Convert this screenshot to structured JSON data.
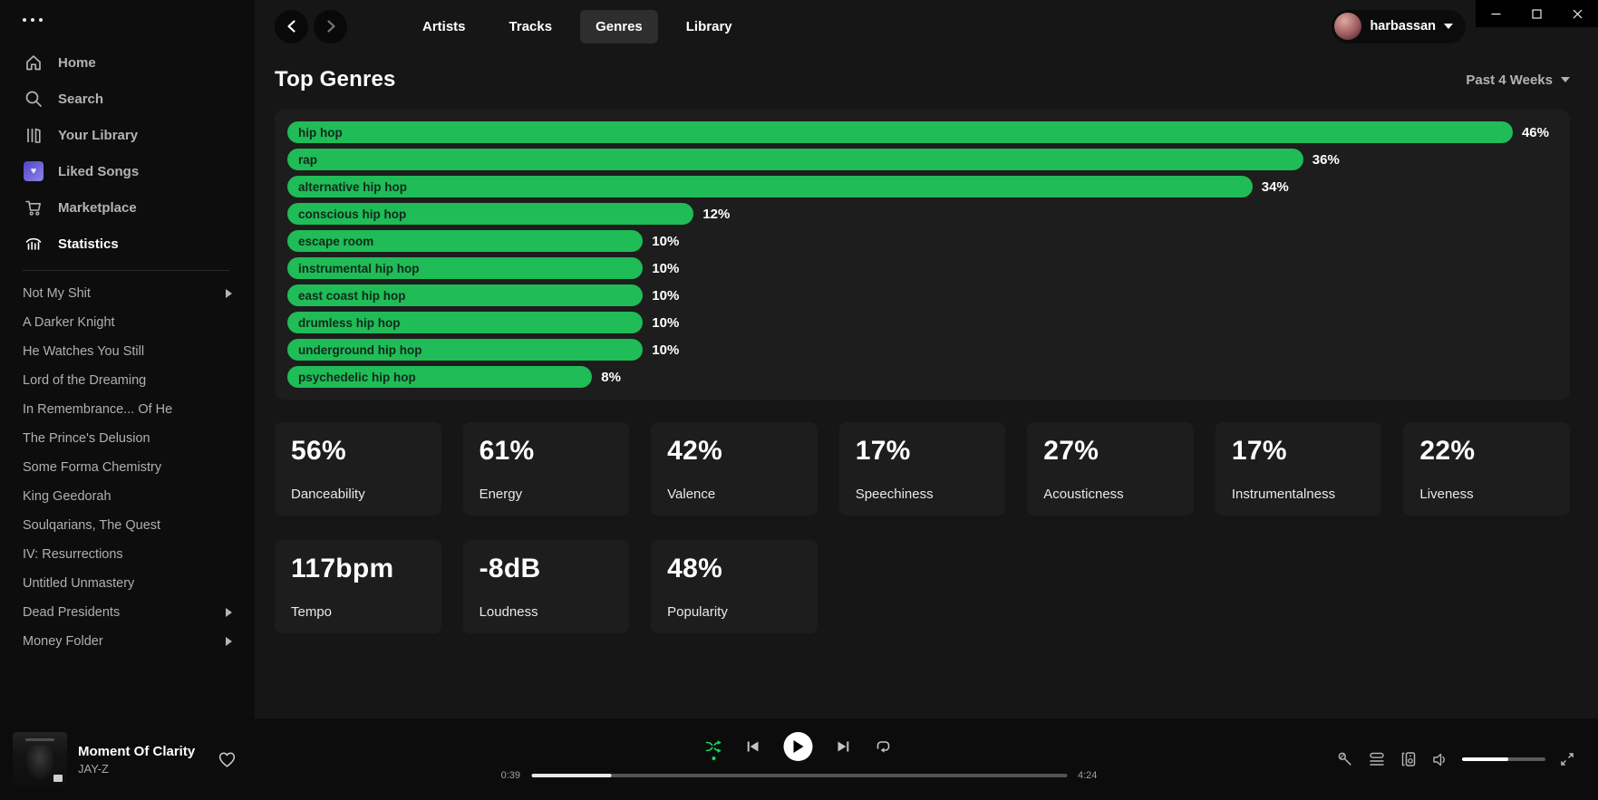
{
  "window": {
    "controls": [
      "minimize",
      "maximize",
      "close"
    ]
  },
  "sidebar": {
    "menu_icon": "ellipsis",
    "nav": [
      {
        "label": "Home",
        "icon": "home",
        "active": false
      },
      {
        "label": "Search",
        "icon": "search",
        "active": false
      },
      {
        "label": "Your Library",
        "icon": "library",
        "active": false
      },
      {
        "label": "Liked Songs",
        "icon": "liked-songs-heart",
        "active": false
      },
      {
        "label": "Marketplace",
        "icon": "cart",
        "active": false
      },
      {
        "label": "Statistics",
        "icon": "bar-chart",
        "active": true
      }
    ],
    "playlists": [
      {
        "label": "Not My Shit",
        "expandable": true
      },
      {
        "label": "A Darker Knight",
        "expandable": false
      },
      {
        "label": "He Watches You Still",
        "expandable": false
      },
      {
        "label": "Lord of the Dreaming",
        "expandable": false
      },
      {
        "label": "In Remembrance... Of He",
        "expandable": false
      },
      {
        "label": "The Prince's Delusion",
        "expandable": false
      },
      {
        "label": "Some Forma Chemistry",
        "expandable": false
      },
      {
        "label": "King Geedorah",
        "expandable": false
      },
      {
        "label": "Soulqarians, The Quest",
        "expandable": false
      },
      {
        "label": "IV: Resurrections",
        "expandable": false
      },
      {
        "label": "Untitled Unmastery",
        "expandable": false
      },
      {
        "label": "Dead Presidents",
        "expandable": true
      },
      {
        "label": "Money Folder",
        "expandable": true
      }
    ]
  },
  "topnav": {
    "tabs": [
      {
        "label": "Artists",
        "active": false
      },
      {
        "label": "Tracks",
        "active": false
      },
      {
        "label": "Genres",
        "active": true
      },
      {
        "label": "Library",
        "active": false
      }
    ],
    "user": {
      "name": "harbassan"
    }
  },
  "page": {
    "title": "Top Genres",
    "time_range": "Past 4 Weeks"
  },
  "chart_data": {
    "type": "bar",
    "title": "Top Genres",
    "orientation": "horizontal",
    "unit": "%",
    "categories": [
      "hip hop",
      "rap",
      "alternative hip hop",
      "conscious hip hop",
      "escape room",
      "instrumental hip hop",
      "east coast hip hop",
      "drumless hip hop",
      "underground hip hop",
      "psychedelic hip hop"
    ],
    "values": [
      46,
      36,
      34,
      12,
      10,
      10,
      10,
      10,
      10,
      8
    ],
    "value_labels": [
      "46%",
      "36%",
      "34%",
      "12%",
      "10%",
      "10%",
      "10%",
      "10%",
      "10%",
      "8%"
    ],
    "bar_widths_pct": [
      96.5,
      80,
      76,
      32,
      28,
      28,
      28,
      28,
      28,
      24
    ],
    "bar_color": "#1fbc57",
    "bar_label_color": "#112b1b",
    "value_label_color": "#ffffff",
    "grid": false,
    "legend": "none"
  },
  "audio_features": {
    "cards": [
      {
        "value": "56%",
        "label": "Danceability"
      },
      {
        "value": "61%",
        "label": "Energy"
      },
      {
        "value": "42%",
        "label": "Valence"
      },
      {
        "value": "17%",
        "label": "Speechiness"
      },
      {
        "value": "27%",
        "label": "Acousticness"
      },
      {
        "value": "17%",
        "label": "Instrumentalness"
      },
      {
        "value": "22%",
        "label": "Liveness"
      },
      {
        "value": "117bpm",
        "label": "Tempo"
      },
      {
        "value": "-8dB",
        "label": "Loudness"
      },
      {
        "value": "48%",
        "label": "Popularity"
      }
    ]
  },
  "player": {
    "track": "Moment Of Clarity",
    "artist": "JAY-Z",
    "elapsed": "0:39",
    "duration": "4:24",
    "progress_pct": 15,
    "volume_pct": 55,
    "shuffle_active": true,
    "left_icons": [
      "heart"
    ],
    "control_icons": [
      "shuffle",
      "previous",
      "play",
      "next",
      "repeat"
    ],
    "right_icons": [
      "lyrics-mic",
      "queue",
      "connect-device",
      "volume",
      "fullscreen"
    ]
  },
  "colors": {
    "accent_green": "#1ed760",
    "sidebar_bg": "#0d0d0d",
    "main_bg": "#161616",
    "panel_bg": "#1d1d1d",
    "player_bg": "#0c0c0c"
  }
}
